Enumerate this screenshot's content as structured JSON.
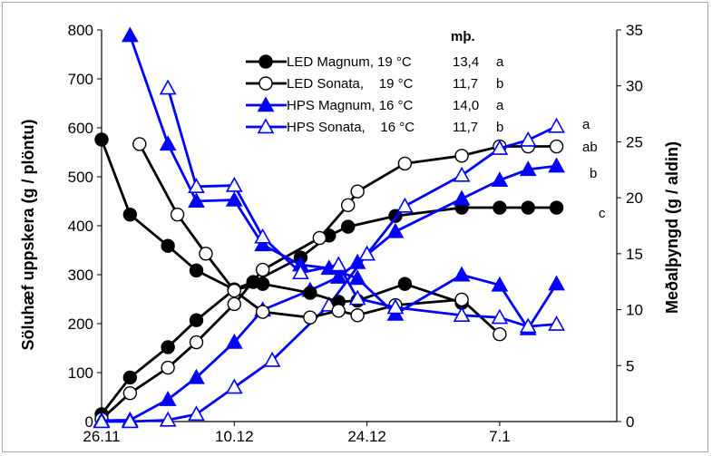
{
  "chart_data": {
    "type": "line",
    "x_ticks": [
      "26.11",
      "10.12",
      "24.12",
      "7.1"
    ],
    "y_left": {
      "label": "Söluhæf uppskera (g / plöntu)",
      "lim": [
        0,
        800
      ],
      "ticks": [
        "0",
        "100",
        "200",
        "300",
        "400",
        "500",
        "600",
        "700",
        "800"
      ]
    },
    "y_right": {
      "label": "Meðalþyngd (g / aldin)",
      "lim": [
        0,
        35
      ],
      "ticks": [
        "0",
        "5",
        "10",
        "15",
        "20",
        "25",
        "30",
        "35"
      ]
    },
    "legend": {
      "header": "mþ.",
      "entries": [
        {
          "name": "LED Magnum, 19 °C",
          "value": "13,4",
          "sig": "a"
        },
        {
          "name": "LED Sonata,    19 °C",
          "value": "11,7",
          "sig": "b"
        },
        {
          "name": "HPS Magnum, 16 °C",
          "value": "14,0",
          "sig": "a"
        },
        {
          "name": "HPS Sonata,    16 °C",
          "value": "11,7",
          "sig": "b"
        }
      ]
    },
    "end_labels": [
      "a",
      "ab",
      "b",
      "c"
    ],
    "series": [
      {
        "key": "led_magnum_yield",
        "axis": "left",
        "color": "#000000",
        "marker": "circle",
        "filled": true,
        "points": [
          [
            26.11,
            15
          ],
          [
            29.11,
            90
          ],
          [
            3.12,
            152
          ],
          [
            6.12,
            207
          ],
          [
            10.12,
            270
          ],
          [
            12.12,
            285
          ],
          [
            17.12,
            335
          ],
          [
            20.12,
            380
          ],
          [
            22.12,
            398
          ],
          [
            27.12,
            420
          ],
          [
            3.1,
            437
          ],
          [
            7.1,
            437
          ],
          [
            10.1,
            437
          ],
          [
            13.1,
            437
          ]
        ]
      },
      {
        "key": "led_sonata_yield",
        "axis": "left",
        "color": "#000000",
        "marker": "circle",
        "filled": false,
        "points": [
          [
            26.11,
            5
          ],
          [
            29.11,
            58
          ],
          [
            3.12,
            110
          ],
          [
            6.12,
            162
          ],
          [
            10.12,
            240
          ],
          [
            13.12,
            310
          ],
          [
            19.12,
            375
          ],
          [
            22.12,
            442
          ],
          [
            23.12,
            470
          ],
          [
            28.12,
            527
          ],
          [
            3.1,
            543
          ],
          [
            7.1,
            562
          ],
          [
            10.1,
            562
          ],
          [
            13.1,
            562
          ]
        ]
      },
      {
        "key": "hps_magnum_yield",
        "axis": "left",
        "color": "#0000ff",
        "marker": "triangle",
        "filled": true,
        "points": [
          [
            26.11,
            2
          ],
          [
            29.11,
            3
          ],
          [
            3.12,
            45
          ],
          [
            6.12,
            90
          ],
          [
            10.12,
            162
          ],
          [
            13.12,
            228
          ],
          [
            18.12,
            268
          ],
          [
            21.12,
            295
          ],
          [
            23.12,
            325
          ],
          [
            27.12,
            388
          ],
          [
            3.1,
            455
          ],
          [
            7.1,
            493
          ],
          [
            10.1,
            515
          ],
          [
            13.1,
            522
          ]
        ]
      },
      {
        "key": "hps_sonata_yield",
        "axis": "left",
        "color": "#0000ff",
        "marker": "triangle",
        "filled": false,
        "points": [
          [
            26.11,
            0
          ],
          [
            29.11,
            0
          ],
          [
            3.12,
            3
          ],
          [
            6.12,
            15
          ],
          [
            10.12,
            70
          ],
          [
            14.12,
            125
          ],
          [
            20.12,
            238
          ],
          [
            24.12,
            342
          ],
          [
            28.12,
            440
          ],
          [
            3.1,
            503
          ],
          [
            7.1,
            558
          ],
          [
            10.1,
            575
          ],
          [
            13.1,
            603
          ]
        ]
      },
      {
        "key": "led_magnum_weight",
        "axis": "right",
        "color": "#000000",
        "marker": "circle",
        "filled": true,
        "points": [
          [
            26.11,
            25.2
          ],
          [
            29.11,
            18.5
          ],
          [
            3.12,
            15.7
          ],
          [
            6.12,
            13.5
          ],
          [
            10.12,
            11.8
          ],
          [
            13.12,
            12.3
          ],
          [
            18.12,
            11.5
          ],
          [
            21.12,
            10.7
          ],
          [
            23.12,
            10.8
          ],
          [
            28.12,
            12.3
          ],
          [
            3.1,
            10.6
          ]
        ]
      },
      {
        "key": "led_sonata_weight",
        "axis": "right",
        "color": "#000000",
        "marker": "circle",
        "filled": false,
        "points": [
          [
            30.11,
            24.8
          ],
          [
            4.12,
            18.5
          ],
          [
            7.12,
            15.0
          ],
          [
            10.12,
            11.7
          ],
          [
            13.12,
            9.8
          ],
          [
            18.12,
            9.3
          ],
          [
            21.12,
            9.9
          ],
          [
            23.12,
            9.5
          ],
          [
            27.12,
            10.4
          ],
          [
            3.1,
            10.9
          ],
          [
            7.1,
            7.8
          ]
        ]
      },
      {
        "key": "hps_magnum_weight",
        "axis": "right",
        "color": "#0000ff",
        "marker": "triangle",
        "filled": true,
        "points": [
          [
            29.11,
            34.5
          ],
          [
            3.12,
            24.8
          ],
          [
            6.12,
            19.7
          ],
          [
            10.12,
            19.8
          ],
          [
            13.12,
            15.8
          ],
          [
            17.12,
            14.0
          ],
          [
            20.12,
            13.7
          ],
          [
            23.12,
            12.8
          ],
          [
            27.12,
            9.6
          ],
          [
            3.1,
            13.1
          ],
          [
            7.1,
            12.2
          ],
          [
            10.1,
            8.3
          ],
          [
            13.1,
            12.3
          ]
        ]
      },
      {
        "key": "hps_sonata_weight",
        "axis": "right",
        "color": "#0000ff",
        "marker": "triangle",
        "filled": false,
        "points": [
          [
            3.12,
            29.8
          ],
          [
            6.12,
            21.0
          ],
          [
            10.12,
            21.1
          ],
          [
            13.12,
            16.5
          ],
          [
            17.12,
            13.3
          ],
          [
            21.12,
            14.0
          ],
          [
            23.12,
            11.0
          ],
          [
            27.12,
            10.2
          ],
          [
            3.1,
            9.5
          ],
          [
            7.1,
            9.3
          ],
          [
            10.1,
            8.5
          ],
          [
            13.1,
            8.7
          ]
        ]
      }
    ]
  }
}
